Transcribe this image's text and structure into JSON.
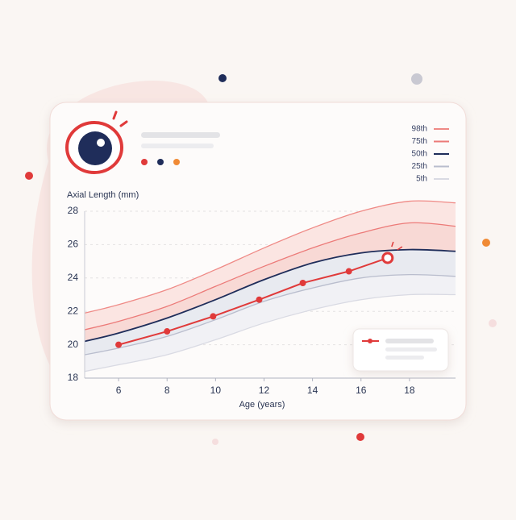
{
  "chart_data": {
    "type": "line",
    "x_label": "Age (years)",
    "y_label": "Axial Length (mm)",
    "xlim": [
      4.6,
      19.9
    ],
    "xticks": [
      6,
      8,
      10,
      12,
      14,
      16,
      18
    ],
    "ylim": [
      18,
      28
    ],
    "yticks": [
      18,
      20,
      22,
      24,
      26,
      28
    ],
    "grid": true,
    "legend": "top-right",
    "series": [
      {
        "name": "98th",
        "color": "#ef8a86",
        "x": [
          4.6,
          6,
          8,
          10,
          12,
          14,
          16,
          18,
          19.9
        ],
        "values": [
          21.9,
          22.4,
          23.3,
          24.5,
          25.8,
          27.0,
          28.0,
          28.6,
          28.5
        ]
      },
      {
        "name": "75th",
        "color": "#ec7a78",
        "x": [
          4.6,
          6,
          8,
          10,
          12,
          14,
          16,
          18,
          19.9
        ],
        "values": [
          20.9,
          21.4,
          22.3,
          23.5,
          24.7,
          25.8,
          26.7,
          27.3,
          27.1
        ]
      },
      {
        "name": "50th",
        "color": "#1f2d5a",
        "x": [
          4.6,
          6,
          8,
          10,
          12,
          14,
          16,
          18,
          19.9
        ],
        "values": [
          20.2,
          20.7,
          21.6,
          22.7,
          23.9,
          24.9,
          25.5,
          25.7,
          25.6
        ]
      },
      {
        "name": "25th",
        "color": "#b9bdcd",
        "x": [
          4.6,
          6,
          8,
          10,
          12,
          14,
          16,
          18,
          19.9
        ],
        "values": [
          19.4,
          19.8,
          20.5,
          21.5,
          22.6,
          23.4,
          24.0,
          24.2,
          24.1
        ]
      },
      {
        "name": "5th",
        "color": "#d9dae3",
        "x": [
          4.6,
          6,
          8,
          10,
          12,
          14,
          16,
          18,
          19.9
        ],
        "values": [
          18.4,
          18.8,
          19.4,
          20.3,
          21.3,
          22.1,
          22.7,
          23.0,
          23.0
        ]
      },
      {
        "color": "#e03a3a",
        "x": [
          6,
          8,
          9.9,
          11.8,
          13.6,
          15.5,
          17.1
        ],
        "values": [
          20.0,
          20.8,
          21.7,
          22.7,
          23.7,
          24.4,
          25.2
        ]
      }
    ]
  }
}
